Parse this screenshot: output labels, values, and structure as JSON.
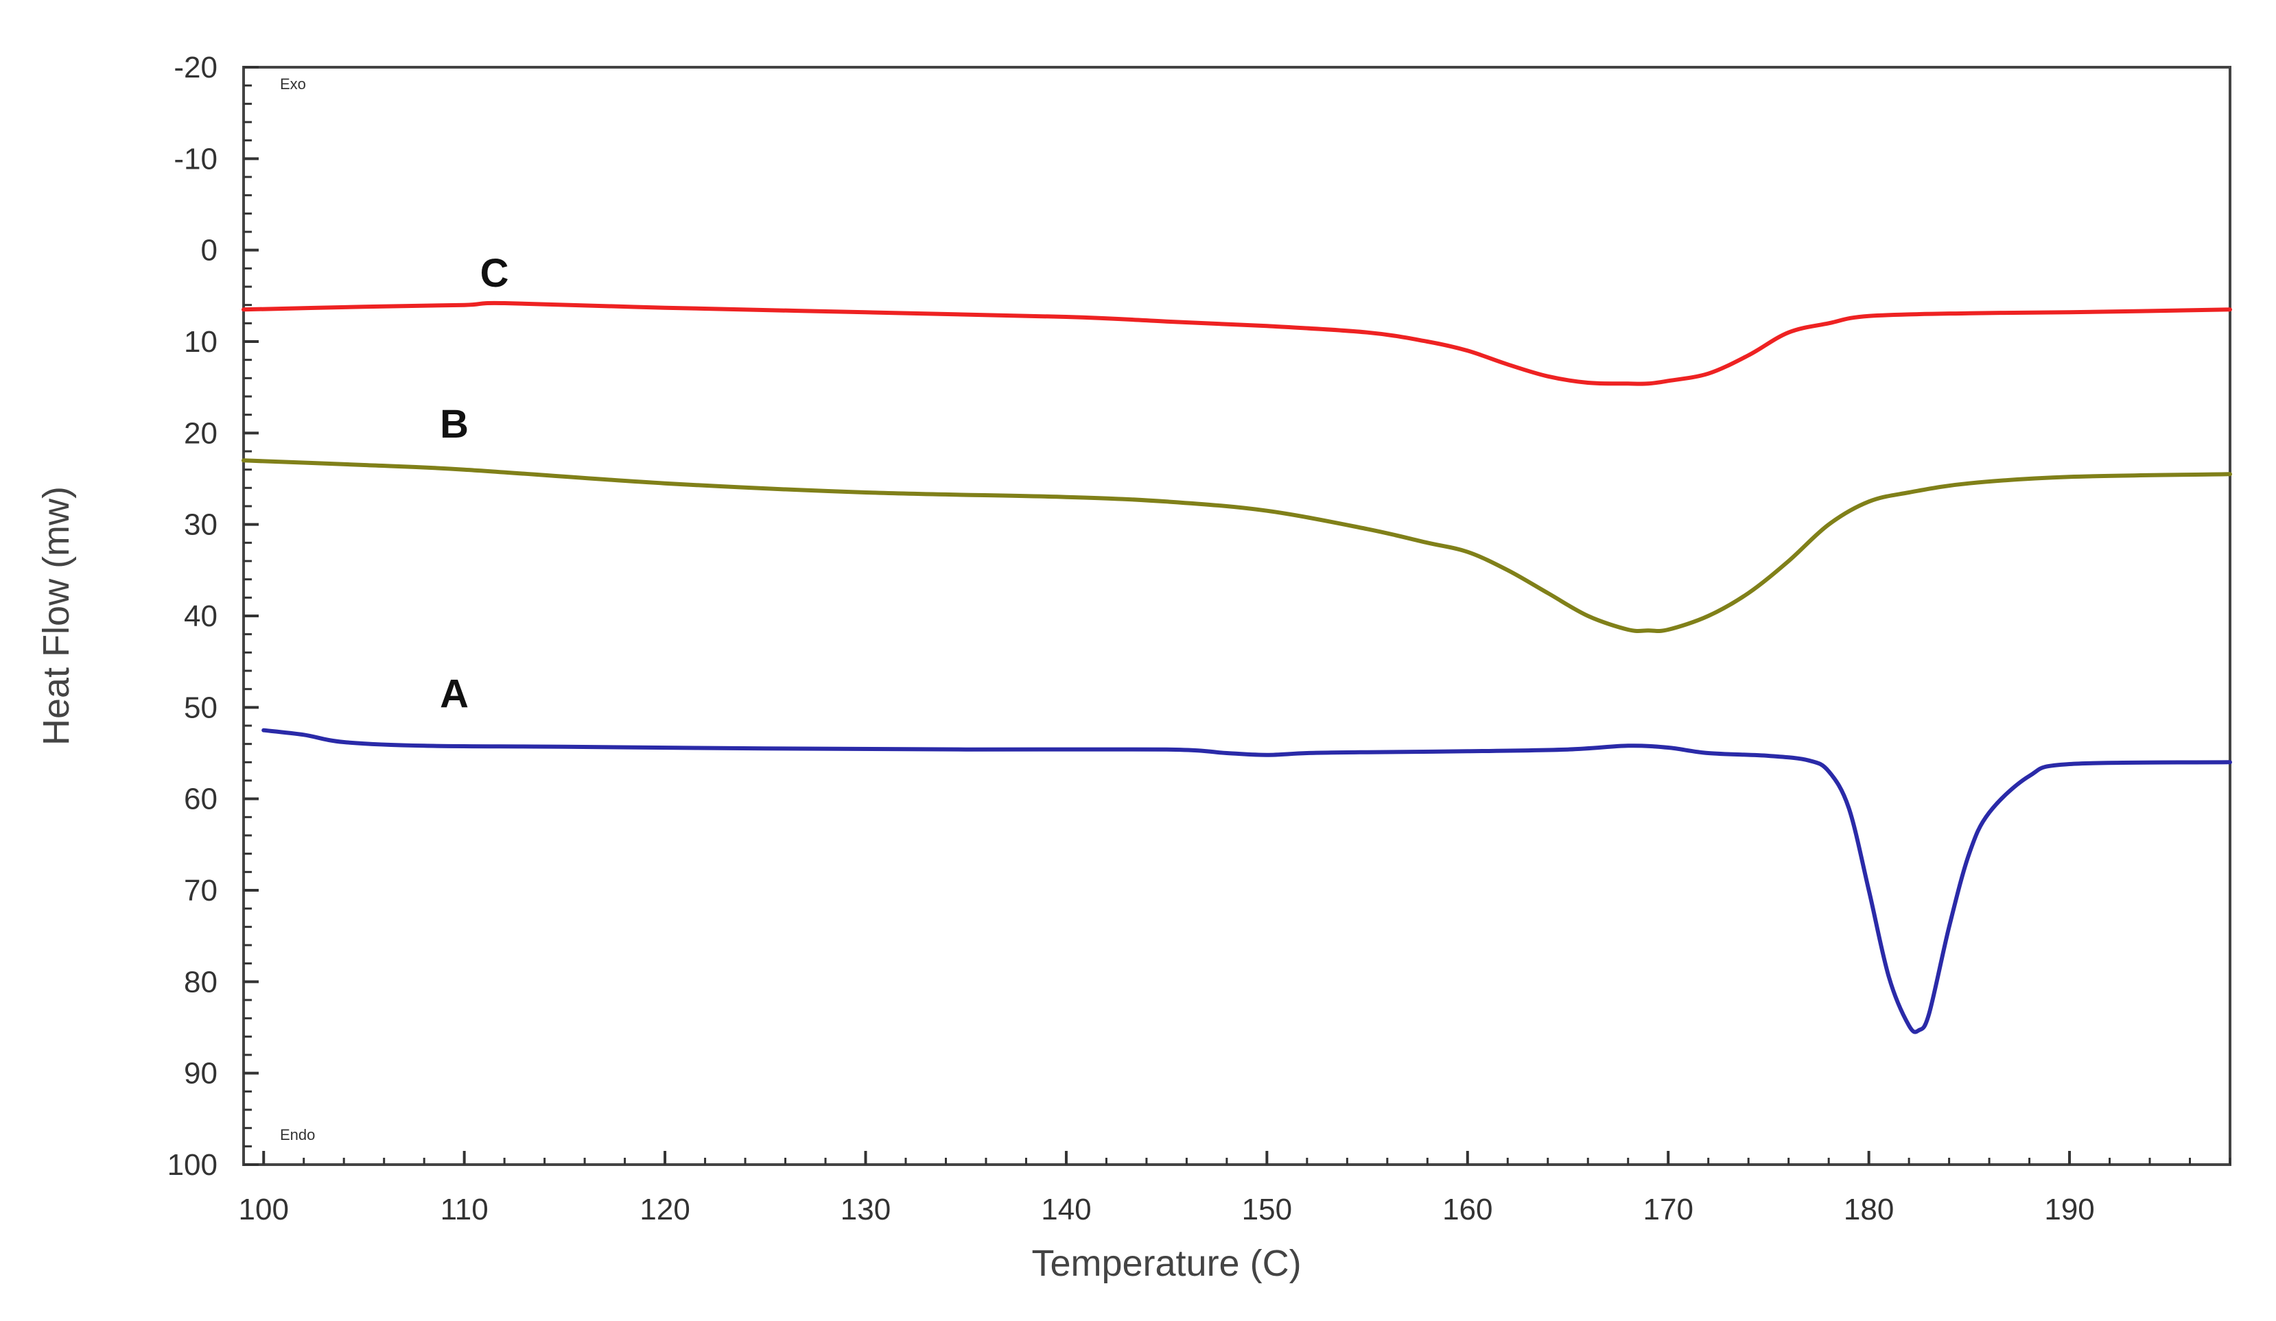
{
  "chart_data": {
    "type": "line",
    "title": "",
    "xlabel": "Temperature (C)",
    "ylabel": "Heat Flow (mw)",
    "xlim": [
      99,
      198
    ],
    "ylim": [
      -20,
      100
    ],
    "y_inverted": true,
    "grid": false,
    "legend": "none",
    "corner_labels": {
      "top": "Exo",
      "bottom": "Endo"
    },
    "x_ticks": [
      "100",
      "110",
      "120",
      "130",
      "140",
      "150",
      "160",
      "170",
      "180",
      "190"
    ],
    "x_tick_values": [
      100,
      110,
      120,
      130,
      140,
      150,
      160,
      170,
      180,
      190
    ],
    "y_ticks": [
      "-20",
      "-10",
      "0",
      "10",
      "20",
      "30",
      "40",
      "50",
      "60",
      "70",
      "80",
      "90",
      "100"
    ],
    "y_tick_values": [
      -20,
      -10,
      0,
      10,
      20,
      30,
      40,
      50,
      60,
      70,
      80,
      90,
      100
    ],
    "series": [
      {
        "name": "C",
        "color": "#ee2222",
        "label_pos": [
          111.5,
          2.5
        ],
        "x": [
          99,
          105,
          110,
          112,
          120,
          130,
          140,
          145,
          150,
          155,
          158,
          160,
          162,
          164,
          166,
          168,
          169,
          170,
          172,
          174,
          176,
          178,
          180,
          185,
          190,
          198
        ],
        "y": [
          6.5,
          6.2,
          6.0,
          5.8,
          6.3,
          6.8,
          7.3,
          7.8,
          8.3,
          9.0,
          10.0,
          11.0,
          12.5,
          13.8,
          14.5,
          14.6,
          14.6,
          14.3,
          13.5,
          11.5,
          9.0,
          8.0,
          7.2,
          6.9,
          6.8,
          6.5
        ]
      },
      {
        "name": "B",
        "color": "#808019",
        "label_pos": [
          109.5,
          19.0
        ],
        "x": [
          99,
          105,
          110,
          120,
          130,
          140,
          145,
          150,
          155,
          158,
          160,
          162,
          164,
          166,
          168,
          169,
          170,
          172,
          174,
          176,
          178,
          180,
          182,
          185,
          190,
          198
        ],
        "y": [
          23.0,
          23.5,
          24.0,
          25.5,
          26.5,
          27.0,
          27.5,
          28.5,
          30.5,
          32.0,
          33.0,
          35.0,
          37.5,
          40.0,
          41.5,
          41.6,
          41.5,
          40.0,
          37.5,
          34.0,
          30.0,
          27.5,
          26.5,
          25.5,
          24.8,
          24.5
        ]
      },
      {
        "name": "A",
        "color": "#2a2aa8",
        "label_pos": [
          109.5,
          48.5
        ],
        "x": [
          100,
          102,
          104,
          108,
          115,
          125,
          135,
          145,
          148,
          150,
          152,
          155,
          160,
          165,
          168,
          170,
          172,
          175,
          177,
          178,
          179,
          180,
          181,
          182,
          182.5,
          183,
          184,
          185,
          186,
          188,
          190,
          198
        ],
        "y": [
          52.5,
          53.0,
          53.8,
          54.2,
          54.3,
          54.5,
          54.6,
          54.6,
          55.0,
          55.2,
          55.0,
          54.9,
          54.8,
          54.6,
          54.2,
          54.4,
          55.0,
          55.3,
          55.8,
          57.0,
          61.0,
          70.0,
          79.5,
          84.8,
          85.3,
          83.5,
          74.0,
          66.0,
          61.5,
          57.5,
          56.2,
          56.0
        ]
      }
    ]
  }
}
